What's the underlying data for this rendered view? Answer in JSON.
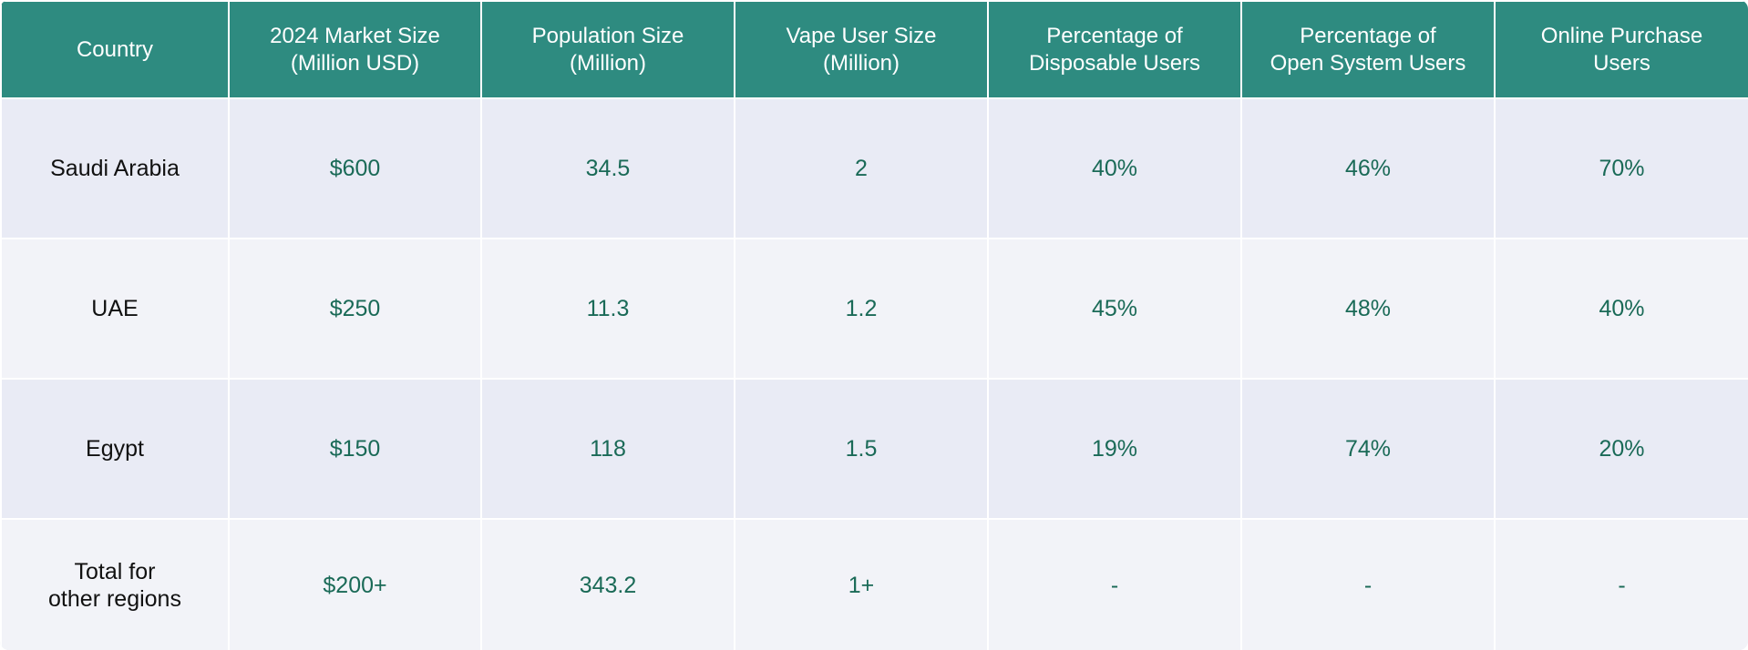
{
  "table": {
    "headers": [
      [
        "Country"
      ],
      [
        "2024 Market Size",
        "(Million USD)"
      ],
      [
        "Population Size",
        "(Million)"
      ],
      [
        "Vape User Size",
        "(Million)"
      ],
      [
        "Percentage of",
        "Disposable Users"
      ],
      [
        "Percentage of",
        "Open System Users"
      ],
      [
        "Online Purchase",
        "Users"
      ]
    ],
    "rows": [
      {
        "country": [
          "Saudi Arabia"
        ],
        "market_size": "$600",
        "population": "34.5",
        "vape_users": "2",
        "disposable_pct": "40%",
        "open_system_pct": "46%",
        "online_pct": "70%"
      },
      {
        "country": [
          "UAE"
        ],
        "market_size": "$250",
        "population": "11.3",
        "vape_users": "1.2",
        "disposable_pct": "45%",
        "open_system_pct": "48%",
        "online_pct": "40%"
      },
      {
        "country": [
          "Egypt"
        ],
        "market_size": "$150",
        "population": "118",
        "vape_users": "1.5",
        "disposable_pct": "19%",
        "open_system_pct": "74%",
        "online_pct": "20%"
      },
      {
        "country": [
          "Total for",
          "other regions"
        ],
        "market_size": "$200+",
        "population": "343.2",
        "vape_users": "1+",
        "disposable_pct": "-",
        "open_system_pct": "-",
        "online_pct": "-"
      }
    ]
  },
  "colors": {
    "header_bg": "#2e8b80",
    "row_odd_bg": "#e9ebf5",
    "row_even_bg": "#f2f3f8",
    "value_text": "#1a6a57"
  }
}
